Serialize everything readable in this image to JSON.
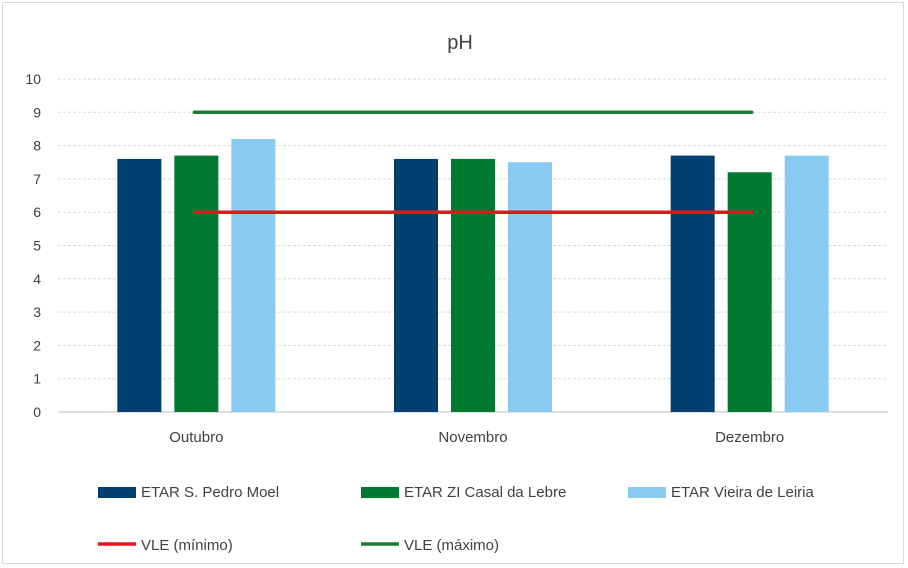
{
  "chart_data": {
    "type": "bar",
    "title": "pH",
    "categories": [
      "Outubro",
      "Novembro",
      "Dezembro"
    ],
    "ylim": [
      0,
      10
    ],
    "yticks": [
      0,
      1,
      2,
      3,
      4,
      5,
      6,
      7,
      8,
      9,
      10
    ],
    "grid": true,
    "legend_position": "bottom",
    "series": [
      {
        "name": "ETAR S. Pedro Moel",
        "values": [
          7.6,
          7.6,
          7.7
        ],
        "color": "#003f6e"
      },
      {
        "name": "ETAR ZI Casal da Lebre",
        "values": [
          7.7,
          7.6,
          7.2
        ],
        "color": "#007a33"
      },
      {
        "name": "ETAR Vieira de Leiria",
        "values": [
          8.2,
          7.5,
          7.7
        ],
        "color": "#89cbf0"
      }
    ],
    "lines": [
      {
        "name": "VLE (mínimo)",
        "value": 6,
        "color": "#e8141b"
      },
      {
        "name": "VLE (máximo)",
        "value": 9,
        "color": "#1e7b34"
      }
    ]
  }
}
